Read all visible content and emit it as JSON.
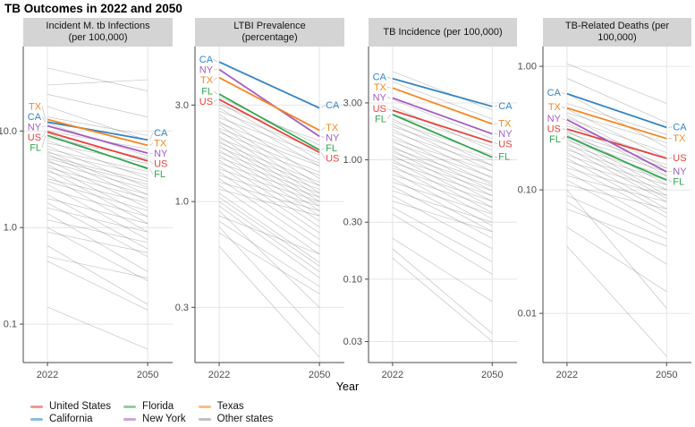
{
  "title": "TB Outcomes in 2022 and 2050",
  "x_axis_label": "Year",
  "legend": {
    "items": [
      {
        "key": "US",
        "label": "United States",
        "color": "#e8413c"
      },
      {
        "key": "CA",
        "label": "California",
        "color": "#3584c4"
      },
      {
        "key": "FL",
        "label": "Florida",
        "color": "#33a653"
      },
      {
        "key": "NY",
        "label": "New York",
        "color": "#a55bc4"
      },
      {
        "key": "TX",
        "label": "Texas",
        "color": "#f5861f"
      },
      {
        "key": "OTHER",
        "label": "Other states",
        "color": "#8c8c8c"
      }
    ]
  },
  "chart_data": {
    "type": "line",
    "subtype": "slopegraph-log-scale",
    "x": [
      "2022",
      "2050"
    ],
    "grid": "major-only",
    "legend_position": "bottom-left",
    "panels": [
      {
        "title": "Incident M. tb Infections (per 100,000)",
        "ylim": [
          0.04,
          75
        ],
        "yticks": [
          {
            "v": 10,
            "label": "10.0"
          },
          {
            "v": 1,
            "label": "1.0"
          },
          {
            "v": 0.1,
            "label": "0.1"
          }
        ],
        "series": [
          {
            "key": "US",
            "values": [
              9.8,
              4.9
            ]
          },
          {
            "key": "CA",
            "values": [
              12.4,
              8.1
            ]
          },
          {
            "key": "FL",
            "values": [
              9.0,
              4.1
            ]
          },
          {
            "key": "NY",
            "values": [
              11.3,
              5.9
            ]
          },
          {
            "key": "TX",
            "values": [
              13.2,
              7.1
            ]
          }
        ],
        "others": [
          [
            45,
            26
          ],
          [
            30,
            34
          ],
          [
            24,
            14
          ],
          [
            18,
            8
          ],
          [
            14,
            9
          ],
          [
            12,
            5.5
          ],
          [
            10,
            6.5
          ],
          [
            9.5,
            4.0
          ],
          [
            8.5,
            5.2
          ],
          [
            8,
            3.2
          ],
          [
            7.5,
            4.6
          ],
          [
            7,
            2.6
          ],
          [
            6.5,
            3.8
          ],
          [
            6.2,
            2.2
          ],
          [
            6,
            3.5
          ],
          [
            5.8,
            1.9
          ],
          [
            5.5,
            3.0
          ],
          [
            5.2,
            2.8
          ],
          [
            5,
            1.6
          ],
          [
            4.8,
            2.5
          ],
          [
            4.5,
            1.3
          ],
          [
            4.2,
            2.2
          ],
          [
            4,
            1.1
          ],
          [
            3.8,
            2.0
          ],
          [
            3.5,
            0.9
          ],
          [
            3.2,
            1.8
          ],
          [
            3,
            1.5
          ],
          [
            2.8,
            0.75
          ],
          [
            2.5,
            1.3
          ],
          [
            2.2,
            0.6
          ],
          [
            2,
            1.1
          ],
          [
            1.8,
            0.5
          ],
          [
            1.6,
            0.9
          ],
          [
            1.4,
            0.35
          ],
          [
            1.2,
            0.7
          ],
          [
            1.0,
            0.28
          ],
          [
            0.9,
            0.55
          ],
          [
            0.65,
            0.16
          ],
          [
            0.5,
            0.3
          ],
          [
            0.45,
            0.14
          ],
          [
            0.15,
            0.055
          ]
        ]
      },
      {
        "title": "LTBI Prevalence (percentage)",
        "ylim": [
          0.16,
          5.84
        ],
        "yticks": [
          {
            "v": 3,
            "label": "3.0"
          },
          {
            "v": 1,
            "label": "1.0"
          },
          {
            "v": 0.3,
            "label": "0.3"
          }
        ],
        "series": [
          {
            "key": "US",
            "values": [
              3.2,
              1.75
            ]
          },
          {
            "key": "CA",
            "values": [
              4.9,
              2.9
            ]
          },
          {
            "key": "FL",
            "values": [
              3.4,
              1.8
            ]
          },
          {
            "key": "NY",
            "values": [
              4.5,
              2.1
            ]
          },
          {
            "key": "TX",
            "values": [
              4.1,
              2.25
            ]
          }
        ],
        "others": [
          [
            3.3,
            1.9
          ],
          [
            3.1,
            1.6
          ],
          [
            3.0,
            2.0
          ],
          [
            2.9,
            1.5
          ],
          [
            2.8,
            1.8
          ],
          [
            2.7,
            1.3
          ],
          [
            2.6,
            1.7
          ],
          [
            2.5,
            1.2
          ],
          [
            2.45,
            1.55
          ],
          [
            2.4,
            1.1
          ],
          [
            2.3,
            1.5
          ],
          [
            2.25,
            1.05
          ],
          [
            2.2,
            1.4
          ],
          [
            2.1,
            1.0
          ],
          [
            2.05,
            1.35
          ],
          [
            2.0,
            0.95
          ],
          [
            1.95,
            1.25
          ],
          [
            1.9,
            0.9
          ],
          [
            1.85,
            1.2
          ],
          [
            1.8,
            0.85
          ],
          [
            1.75,
            1.15
          ],
          [
            1.7,
            0.8
          ],
          [
            1.65,
            1.1
          ],
          [
            1.6,
            0.75
          ],
          [
            1.55,
            1.05
          ],
          [
            1.5,
            0.7
          ],
          [
            1.45,
            1.0
          ],
          [
            1.4,
            0.65
          ],
          [
            1.35,
            0.95
          ],
          [
            1.3,
            0.6
          ],
          [
            1.25,
            0.9
          ],
          [
            1.2,
            0.55
          ],
          [
            1.15,
            0.85
          ],
          [
            1.1,
            0.5
          ],
          [
            1.05,
            0.48
          ],
          [
            1.0,
            0.45
          ],
          [
            0.95,
            0.42
          ],
          [
            0.9,
            0.3
          ],
          [
            0.85,
            0.55
          ],
          [
            0.8,
            0.38
          ],
          [
            0.75,
            0.22
          ],
          [
            0.7,
            0.35
          ],
          [
            0.6,
            0.17
          ]
        ]
      },
      {
        "title": "TB Incidence (per 100,000)",
        "ylim": [
          0.02,
          8.9
        ],
        "yticks": [
          {
            "v": 3,
            "label": "3.00"
          },
          {
            "v": 1,
            "label": "1.00"
          },
          {
            "v": 0.3,
            "label": "0.30"
          },
          {
            "v": 0.1,
            "label": "0.10"
          },
          {
            "v": 0.03,
            "label": "0.03"
          }
        ],
        "series": [
          {
            "key": "US",
            "values": [
              2.6,
              1.4
            ]
          },
          {
            "key": "CA",
            "values": [
              4.8,
              2.8
            ]
          },
          {
            "key": "FL",
            "values": [
              2.4,
              1.05
            ]
          },
          {
            "key": "NY",
            "values": [
              3.3,
              1.65
            ]
          },
          {
            "key": "TX",
            "values": [
              4.0,
              2.0
            ]
          }
        ],
        "others": [
          [
            5.5,
            2.6
          ],
          [
            4.5,
            2.2
          ],
          [
            3.2,
            1.5
          ],
          [
            2.8,
            1.2
          ],
          [
            2.4,
            1.3
          ],
          [
            2.2,
            0.9
          ],
          [
            2.1,
            1.1
          ],
          [
            2.0,
            0.8
          ],
          [
            1.9,
            1.0
          ],
          [
            1.8,
            0.7
          ],
          [
            1.7,
            0.9
          ],
          [
            1.6,
            0.62
          ],
          [
            1.5,
            0.8
          ],
          [
            1.45,
            0.55
          ],
          [
            1.4,
            0.72
          ],
          [
            1.3,
            0.5
          ],
          [
            1.25,
            0.65
          ],
          [
            1.2,
            0.45
          ],
          [
            1.15,
            0.6
          ],
          [
            1.1,
            0.4
          ],
          [
            1.05,
            0.55
          ],
          [
            1.0,
            0.36
          ],
          [
            0.95,
            0.5
          ],
          [
            0.9,
            0.32
          ],
          [
            0.85,
            0.45
          ],
          [
            0.8,
            0.28
          ],
          [
            0.75,
            0.4
          ],
          [
            0.7,
            0.25
          ],
          [
            0.65,
            0.35
          ],
          [
            0.6,
            0.22
          ],
          [
            0.55,
            0.3
          ],
          [
            0.5,
            0.18
          ],
          [
            0.45,
            0.25
          ],
          [
            0.4,
            0.14
          ],
          [
            0.35,
            0.11
          ],
          [
            0.22,
            0.065
          ],
          [
            0.18,
            0.035
          ],
          [
            0.15,
            0.03
          ]
        ]
      },
      {
        "title": "TB-Related Deaths (per 100,000)",
        "ylim": [
          0.004,
          1.445
        ],
        "yticks": [
          {
            "v": 1,
            "label": "1.00"
          },
          {
            "v": 0.1,
            "label": "0.10"
          },
          {
            "v": 0.01,
            "label": "0.01"
          }
        ],
        "series": [
          {
            "key": "US",
            "values": [
              0.31,
              0.18
            ]
          },
          {
            "key": "CA",
            "values": [
              0.6,
              0.32
            ]
          },
          {
            "key": "FL",
            "values": [
              0.27,
              0.12
            ]
          },
          {
            "key": "NY",
            "values": [
              0.37,
              0.14
            ]
          },
          {
            "key": "TX",
            "values": [
              0.46,
              0.26
            ]
          }
        ],
        "others": [
          [
            1.05,
            0.5
          ],
          [
            0.8,
            0.35
          ],
          [
            0.6,
            0.22
          ],
          [
            0.5,
            0.28
          ],
          [
            0.45,
            0.18
          ],
          [
            0.42,
            0.24
          ],
          [
            0.4,
            0.15
          ],
          [
            0.38,
            0.2
          ],
          [
            0.35,
            0.13
          ],
          [
            0.33,
            0.18
          ],
          [
            0.3,
            0.11
          ],
          [
            0.29,
            0.16
          ],
          [
            0.28,
            0.1
          ],
          [
            0.27,
            0.15
          ],
          [
            0.26,
            0.09
          ],
          [
            0.25,
            0.14
          ],
          [
            0.24,
            0.085
          ],
          [
            0.23,
            0.13
          ],
          [
            0.22,
            0.08
          ],
          [
            0.21,
            0.12
          ],
          [
            0.2,
            0.07
          ],
          [
            0.19,
            0.11
          ],
          [
            0.18,
            0.065
          ],
          [
            0.17,
            0.1
          ],
          [
            0.16,
            0.06
          ],
          [
            0.15,
            0.09
          ],
          [
            0.14,
            0.05
          ],
          [
            0.13,
            0.08
          ],
          [
            0.12,
            0.045
          ],
          [
            0.11,
            0.07
          ],
          [
            0.1,
            0.011
          ],
          [
            0.09,
            0.04
          ],
          [
            0.08,
            0.025
          ],
          [
            0.07,
            0.035
          ],
          [
            0.05,
            0.015
          ],
          [
            0.035,
            0.0045
          ]
        ]
      }
    ]
  }
}
